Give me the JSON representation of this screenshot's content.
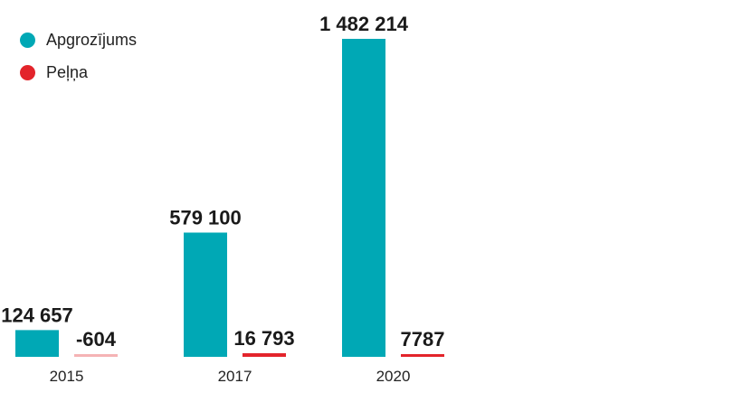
{
  "chart_data": {
    "type": "bar",
    "categories": [
      "2015",
      "2017",
      "2020"
    ],
    "series": [
      {
        "name": "Apgrozījums",
        "color": "#00a8b5",
        "values": [
          124657,
          579100,
          1482214
        ],
        "labels": [
          "124 657",
          "579 100",
          "1 482 214"
        ]
      },
      {
        "name": "Peļņa",
        "color": "#e3242b",
        "values": [
          -604,
          16793,
          7787
        ],
        "labels": [
          "-604",
          "16 793",
          "7787"
        ]
      }
    ],
    "title": "",
    "xlabel": "",
    "ylabel": "",
    "ylim": [
      0,
      1482214
    ],
    "grid": false,
    "legend": "top-left"
  }
}
